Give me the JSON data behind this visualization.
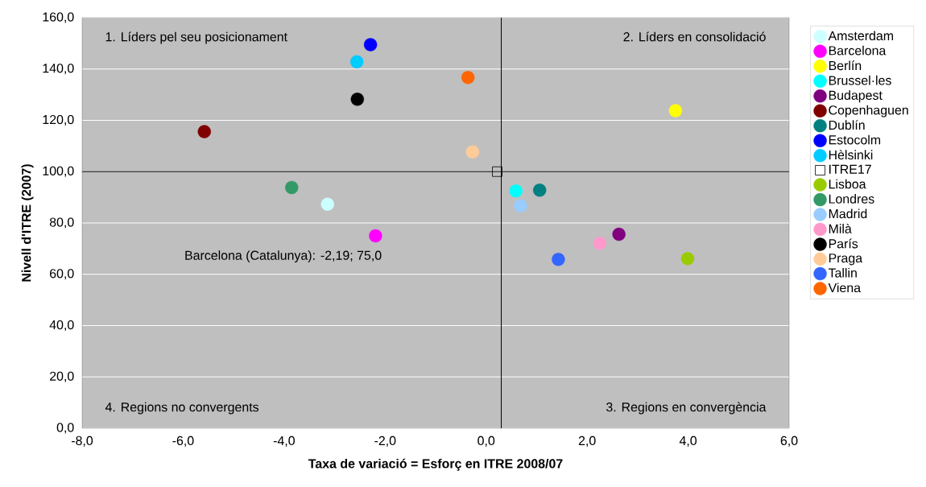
{
  "chart_data": {
    "type": "scatter",
    "xlabel": "Taxa de variació = Esforç en ITRE 2008/07",
    "ylabel": "Nivell d'ITRE (2007)",
    "xlim": [
      -8,
      6
    ],
    "ylim": [
      0,
      160
    ],
    "xticks": [
      {
        "value": -8,
        "label": "-8,0"
      },
      {
        "value": -6,
        "label": "-6,0"
      },
      {
        "value": -4,
        "label": "-4,0"
      },
      {
        "value": -2,
        "label": "-2,0"
      },
      {
        "value": 0,
        "label": "0,0"
      },
      {
        "value": 2,
        "label": "2,0"
      },
      {
        "value": 4,
        "label": "4,0"
      },
      {
        "value": 6,
        "label": "6,0"
      }
    ],
    "yticks": [
      {
        "value": 0,
        "label": "0,0"
      },
      {
        "value": 20,
        "label": "20,0"
      },
      {
        "value": 40,
        "label": "40,0"
      },
      {
        "value": 60,
        "label": "60,0"
      },
      {
        "value": 80,
        "label": "80,0"
      },
      {
        "value": 100,
        "label": "100,0"
      },
      {
        "value": 120,
        "label": "120,0"
      },
      {
        "value": 140,
        "label": "140,0"
      },
      {
        "value": 160,
        "label": "160,0"
      }
    ],
    "grid": "y",
    "legend": "right",
    "marker": "circle",
    "ref_lines": [
      {
        "axis": "x",
        "value": 0.3,
        "color": "#000000"
      },
      {
        "axis": "y",
        "value": 100,
        "color": "#000000"
      }
    ],
    "annotations": [
      "1. Líders pel seu posicionament",
      "2. Líders en consolidació",
      "3. Regions en convergència",
      "4. Regions no convergents",
      {
        "text": "Barcelona (Catalunya): -2,19; 75,0",
        "x": -2.19,
        "y": 75.0
      }
    ],
    "series": [
      {
        "name": "Amsterdam",
        "color": "#ccffff",
        "x": [
          -3.14
        ],
        "values": [
          87.3
        ]
      },
      {
        "name": "Barcelona",
        "color": "#ff00ff",
        "x": [
          -2.19
        ],
        "values": [
          75.0
        ]
      },
      {
        "name": "Berlín",
        "color": "#ffff00",
        "x": [
          3.75
        ],
        "values": [
          123.8
        ]
      },
      {
        "name": "Brussel·les",
        "color": "#00ffff",
        "x": [
          0.59
        ],
        "values": [
          92.5
        ]
      },
      {
        "name": "Budapest",
        "color": "#800080",
        "x": [
          2.63
        ],
        "values": [
          75.6
        ]
      },
      {
        "name": "Copenhaguen",
        "color": "#800000",
        "x": [
          -5.58
        ],
        "values": [
          115.6
        ]
      },
      {
        "name": "Dublín",
        "color": "#008080",
        "x": [
          1.06
        ],
        "values": [
          92.8
        ]
      },
      {
        "name": "Estocolm",
        "color": "#0000ff",
        "x": [
          -2.29
        ],
        "values": [
          149.5
        ]
      },
      {
        "name": "Hèlsinki",
        "color": "#00ccff",
        "x": [
          -2.56
        ],
        "values": [
          142.8
        ]
      },
      {
        "name": "ITRE17",
        "color": "#000000",
        "marker": "square",
        "x": [
          0.22
        ],
        "values": [
          100.0
        ]
      },
      {
        "name": "Lisboa",
        "color": "#99cc00",
        "x": [
          3.99
        ],
        "values": [
          66.1
        ]
      },
      {
        "name": "Londres",
        "color": "#339966",
        "x": [
          -3.85
        ],
        "values": [
          93.8
        ]
      },
      {
        "name": "Madrid",
        "color": "#99ccff",
        "x": [
          0.68
        ],
        "values": [
          86.7
        ]
      },
      {
        "name": "Milà",
        "color": "#ff99cc",
        "x": [
          2.25
        ],
        "values": [
          72.1
        ]
      },
      {
        "name": "París",
        "color": "#000000",
        "x": [
          -2.55
        ],
        "values": [
          128.2
        ]
      },
      {
        "name": "Praga",
        "color": "#ffcc99",
        "x": [
          -0.27
        ],
        "values": [
          107.7
        ]
      },
      {
        "name": "Tallin",
        "color": "#3366ff",
        "x": [
          1.43
        ],
        "values": [
          65.8
        ]
      },
      {
        "name": "Viena",
        "color": "#ff6600",
        "x": [
          -0.36
        ],
        "values": [
          136.7
        ]
      }
    ]
  }
}
